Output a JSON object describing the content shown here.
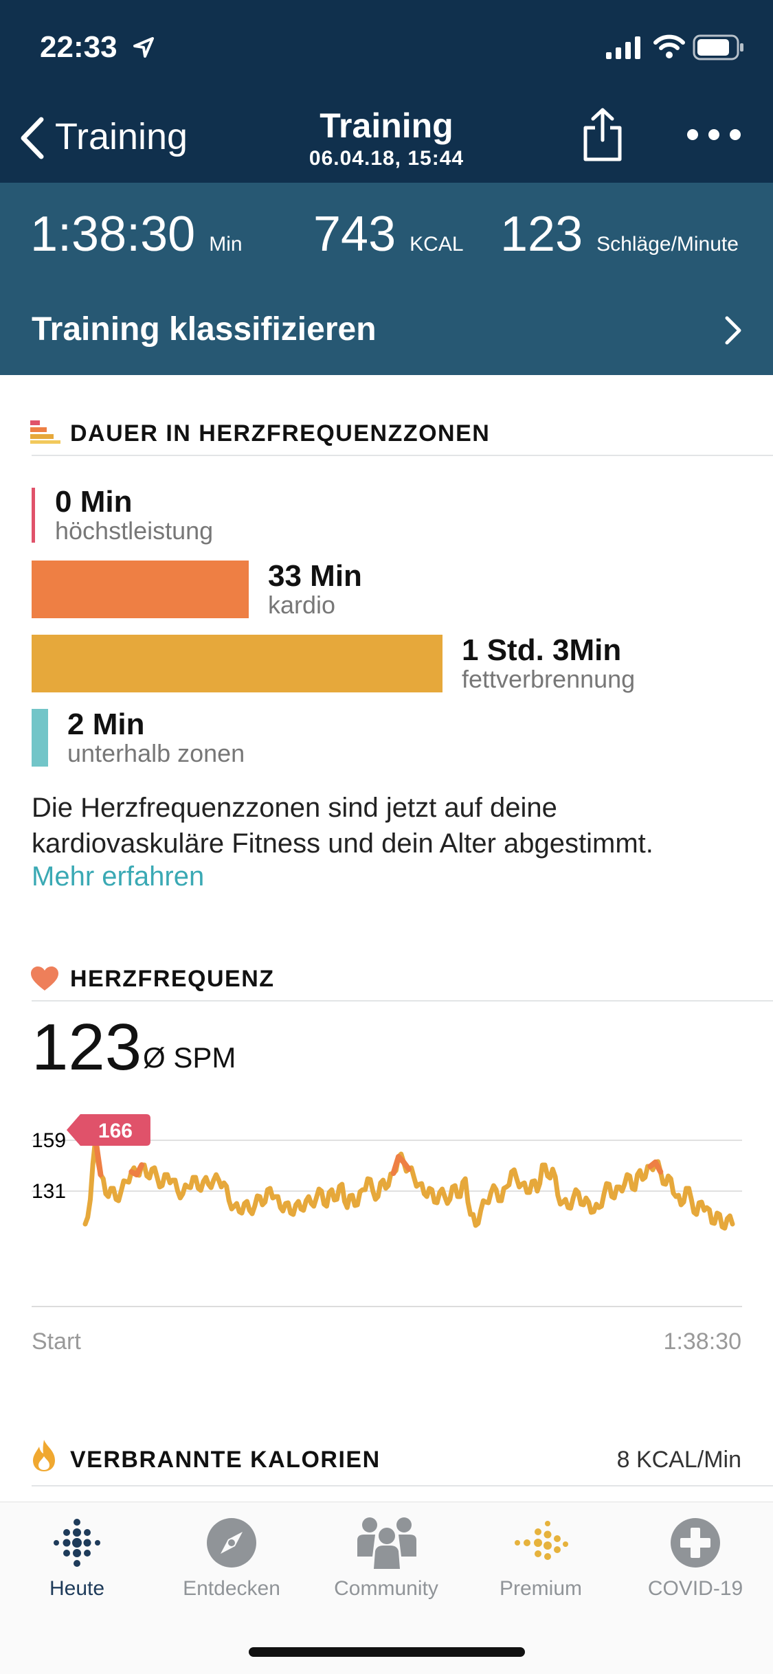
{
  "status_bar": {
    "time": "22:33"
  },
  "nav": {
    "back_label": "Training",
    "title": "Training",
    "subtitle": "06.04.18, 15:44"
  },
  "stats": {
    "duration": {
      "value": "1:38:30",
      "unit": "Min"
    },
    "calories": {
      "value": "743",
      "unit": "KCAL"
    },
    "heart_rate": {
      "value": "123",
      "unit": "Schläge/Minute"
    }
  },
  "classify_label": "Training klassifizieren",
  "zones_section": {
    "title": "DAUER IN HERZFREQUENZZONEN",
    "zones": [
      {
        "value": "0 Min",
        "label": "höchstleistung",
        "color": "#e0526a",
        "minutes": 0
      },
      {
        "value": "33 Min",
        "label": "kardio",
        "color": "#ee7f44",
        "minutes": 33
      },
      {
        "value": "1 Std. 3Min",
        "label": "fettverbrennung",
        "color": "#e6a83b",
        "minutes": 63
      },
      {
        "value": "2 Min",
        "label": "unterhalb zonen",
        "color": "#72c5c8",
        "minutes": 2
      }
    ],
    "description": "Die Herzfrequenzzonen sind jetzt auf deine kardiovaskuläre Fitness und dein Alter abgestimmt.",
    "link": "Mehr erfahren"
  },
  "heart_section": {
    "title": "HERZFREQUENZ",
    "average": "123",
    "average_unit": "Ø SPM",
    "chart_data": {
      "type": "line",
      "y_ticks": [
        "159",
        "131"
      ],
      "peak_label": "166",
      "x_start_label": "Start",
      "x_end_label": "1:38:30",
      "ylim": [
        95,
        175
      ],
      "values": [
        104,
        122,
        166,
        140,
        126,
        130,
        122,
        128,
        135,
        142,
        140,
        147,
        139,
        144,
        138,
        132,
        140,
        136,
        128,
        126,
        131,
        138,
        130,
        135,
        133,
        136,
        136,
        134,
        121,
        117,
        113,
        119,
        114,
        117,
        124,
        120,
        130,
        124,
        116,
        119,
        112,
        118,
        115,
        121,
        119,
        123,
        128,
        117,
        129,
        122,
        133,
        116,
        125,
        118,
        129,
        137,
        128,
        124,
        136,
        132,
        141,
        153,
        149,
        144,
        138,
        133,
        126,
        130,
        120,
        127,
        124,
        122,
        132,
        124,
        137,
        111,
        103,
        114,
        120,
        127,
        129,
        121,
        131,
        142,
        137,
        133,
        127,
        135,
        128,
        147,
        139,
        144,
        125,
        120,
        116,
        123,
        127,
        118,
        120,
        113,
        116,
        126,
        133,
        123,
        131,
        133,
        139,
        129,
        143,
        138,
        146,
        149,
        142,
        133,
        137,
        124,
        118,
        130,
        122,
        111,
        120,
        116,
        105,
        112,
        102,
        108,
        104
      ]
    },
    "colors": {
      "line": "#e6a83b",
      "high": "#ee7f44",
      "peak_badge": "#e0526a"
    }
  },
  "calories_section": {
    "title": "VERBRANNTE KALORIEN",
    "rate": "8 KCAL/Min"
  },
  "tab_bar": {
    "tabs": [
      {
        "label": "Heute",
        "icon": "fitbit-dots-icon",
        "active": true
      },
      {
        "label": "Entdecken",
        "icon": "compass-icon",
        "active": false
      },
      {
        "label": "Community",
        "icon": "community-icon",
        "active": false
      },
      {
        "label": "Premium",
        "icon": "premium-dots-icon",
        "active": false
      },
      {
        "label": "COVID-19",
        "icon": "plus-cross-icon",
        "active": false
      }
    ]
  }
}
